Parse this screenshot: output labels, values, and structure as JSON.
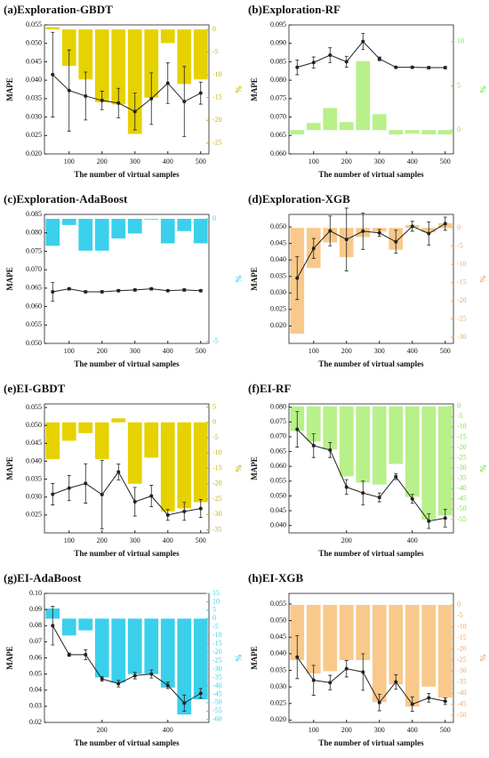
{
  "chart_data": [
    {
      "type": "combo",
      "title": "(a)Exploration-GBDT",
      "xlabel": "The number of virtual samples",
      "ylabel": "MAPE",
      "y2label": "%",
      "x": [
        50,
        100,
        150,
        200,
        250,
        300,
        350,
        400,
        450,
        500
      ],
      "xlim": [
        25,
        525
      ],
      "xticks": [
        100,
        200,
        300,
        400,
        500
      ],
      "ylim": [
        0.02,
        0.055
      ],
      "yticks": [
        {
          "value": 0.02,
          "label": "0.020"
        },
        0.025,
        {
          "value": 0.03,
          "label": "0.030"
        },
        0.035,
        {
          "value": 0.04,
          "label": "0.040"
        },
        0.045,
        {
          "value": 0.05,
          "label": "0.050"
        },
        0.055
      ],
      "y2lim": [
        -27.4,
        1
      ],
      "y2ticks": [
        0,
        -5,
        -10,
        -15,
        -20,
        -25
      ],
      "y2color": "#c8b400",
      "series": [
        {
          "type": "bar",
          "axis": "y2",
          "color": "#e6d200",
          "values": [
            0.5,
            -8,
            -11,
            -16,
            -16.5,
            -23,
            -15,
            -3,
            -12,
            -11
          ]
        },
        {
          "type": "line",
          "color": "#222222",
          "values": [
            0.0415,
            0.0372,
            0.0357,
            0.0345,
            0.0338,
            0.0315,
            0.035,
            0.0392,
            0.0342,
            0.0365
          ],
          "errors": [
            0.0115,
            0.011,
            0.0065,
            0.0025,
            0.004,
            0.005,
            0.007,
            0.0055,
            0.0095,
            0.003
          ]
        }
      ]
    },
    {
      "type": "combo",
      "title": "(b)Exploration-RF",
      "xlabel": "The number of virtual samples",
      "ylabel": "MAPE",
      "y2label": "%",
      "x": [
        50,
        100,
        150,
        200,
        250,
        300,
        350,
        400,
        450,
        500
      ],
      "xlim": [
        25,
        525
      ],
      "xticks": [
        100,
        200,
        300,
        400,
        500
      ],
      "ylim": [
        0.06,
        0.095
      ],
      "yticks": [
        {
          "value": 0.06,
          "label": "0.060"
        },
        0.065,
        {
          "value": 0.07,
          "label": "0.070"
        },
        0.075,
        {
          "value": 0.08,
          "label": "0.080"
        },
        0.085,
        {
          "value": 0.09,
          "label": "0.090"
        },
        0.095
      ],
      "y2lim": [
        -2.7,
        11.9
      ],
      "y2ticks": [
        0,
        5,
        10
      ],
      "y2color": "#7be04a",
      "series": [
        {
          "type": "bar",
          "axis": "y2",
          "color": "#b8f08a",
          "values": [
            -0.5,
            0.8,
            2.5,
            0.9,
            7.8,
            1.8,
            -0.5,
            -0.4,
            -0.5,
            -0.5
          ]
        },
        {
          "type": "line",
          "color": "#222222",
          "values": [
            0.0835,
            0.0848,
            0.0868,
            0.085,
            0.0905,
            0.0858,
            0.0835,
            0.0835,
            0.0834,
            0.0834
          ],
          "errors": [
            0.002,
            0.0015,
            0.002,
            0.0015,
            0.0022,
            0.0005,
            0.0003,
            0.0003,
            0.0003,
            0.0003
          ]
        }
      ]
    },
    {
      "type": "combo",
      "title": "(c)Exploration-AdaBoost",
      "xlabel": "The number of virtual samples",
      "ylabel": "MAPE",
      "y2label": "%",
      "x": [
        50,
        100,
        150,
        200,
        250,
        300,
        350,
        400,
        450,
        500
      ],
      "xlim": [
        25,
        525
      ],
      "xticks": [
        100,
        200,
        300,
        400,
        500
      ],
      "ylim": [
        0.05,
        0.085
      ],
      "yticks": [
        {
          "value": 0.05,
          "label": "0.050"
        },
        0.055,
        {
          "value": 0.06,
          "label": "0.060"
        },
        0.065,
        {
          "value": 0.07,
          "label": "0.070"
        },
        0.075,
        {
          "value": 0.08,
          "label": "0.080"
        },
        0.085
      ],
      "y2lim": [
        -5.08,
        0.18
      ],
      "y2ticks": [
        0,
        -5
      ],
      "y2color": "#3ad0ec",
      "series": [
        {
          "type": "bar",
          "axis": "y2",
          "color": "#3ad0ec",
          "values": [
            -1.1,
            -0.25,
            -1.3,
            -1.3,
            -0.8,
            -0.6,
            -0.03,
            -1,
            -0.5,
            -1
          ]
        },
        {
          "type": "line",
          "color": "#222222",
          "values": [
            0.064,
            0.0648,
            0.064,
            0.064,
            0.0643,
            0.0645,
            0.0648,
            0.0643,
            0.0645,
            0.0643
          ],
          "errors": [
            0.0025,
            0.0003,
            0.0003,
            0.0003,
            0.0003,
            0.0003,
            0.0003,
            0.0003,
            0.0003,
            0.0003
          ]
        }
      ]
    },
    {
      "type": "combo",
      "title": "(d)Exploration-XGB",
      "xlabel": "The number of virtual samples",
      "ylabel": "MAPE",
      "y2label": "%",
      "x": [
        50,
        100,
        150,
        200,
        250,
        300,
        350,
        400,
        450,
        500
      ],
      "xlim": [
        25,
        525
      ],
      "xticks": [
        100,
        200,
        300,
        400,
        500
      ],
      "ylim": [
        0.0147,
        0.0538
      ],
      "yticks": [
        {
          "value": 0.02,
          "label": "0.020"
        },
        0.025,
        {
          "value": 0.03,
          "label": "0.030"
        },
        0.035,
        {
          "value": 0.04,
          "label": "0.040"
        },
        0.045,
        {
          "value": 0.05,
          "label": "0.050"
        }
      ],
      "y2lim": [
        -31.7,
        3.7
      ],
      "y2ticks": [
        0,
        -5,
        -10,
        -15,
        -20,
        -25,
        -30
      ],
      "y2color": "#f0a860",
      "series": [
        {
          "type": "bar",
          "axis": "y2",
          "color": "#f8c98a",
          "values": [
            -29,
            -11,
            -4,
            -8,
            -2.5,
            -1,
            -6,
            0.8,
            -1.2,
            1.3
          ]
        },
        {
          "type": "line",
          "color": "#222222",
          "values": [
            0.0345,
            0.0435,
            0.0488,
            0.0462,
            0.0487,
            0.0482,
            0.0455,
            0.0502,
            0.048,
            0.051
          ],
          "errors": [
            0.0065,
            0.003,
            0.0045,
            0.0095,
            0.0055,
            0.001,
            0.0035,
            0.0015,
            0.0035,
            0.002
          ]
        }
      ]
    },
    {
      "type": "combo",
      "title": "(e)EI-GBDT",
      "xlabel": "The number of virtual samples",
      "ylabel": "MAPE",
      "y2label": "%",
      "x": [
        50,
        100,
        150,
        200,
        250,
        300,
        350,
        400,
        450,
        500
      ],
      "xlim": [
        25,
        525
      ],
      "xticks": [
        100,
        200,
        300,
        400,
        500
      ],
      "ylim": [
        0.02,
        0.056
      ],
      "yticks": [
        0.025,
        {
          "value": 0.03,
          "label": "0.030"
        },
        0.035,
        {
          "value": 0.04,
          "label": "0.040"
        },
        0.045,
        {
          "value": 0.05,
          "label": "0.050"
        },
        0.055
      ],
      "y2lim": [
        -36,
        6
      ],
      "y2ticks": [
        5,
        0,
        -5,
        -10,
        -15,
        -20,
        -25,
        -30,
        -35
      ],
      "y2color": "#c8b400",
      "series": [
        {
          "type": "bar",
          "axis": "y2",
          "color": "#e6d200",
          "values": [
            -12,
            -6,
            -3.5,
            -12,
            1.3,
            -20,
            -11.5,
            -29,
            -28,
            -26
          ]
        },
        {
          "type": "line",
          "color": "#222222",
          "values": [
            0.0308,
            0.0325,
            0.0338,
            0.0307,
            0.037,
            0.0287,
            0.0303,
            0.025,
            0.026,
            0.0268
          ],
          "errors": [
            0.003,
            0.0035,
            0.0055,
            0.0095,
            0.0022,
            0.004,
            0.003,
            0.0015,
            0.0025,
            0.0025
          ]
        }
      ]
    },
    {
      "type": "combo",
      "title": "(f)EI-RF",
      "xlabel": "The number of virtual samples",
      "ylabel": "MAPE",
      "y2label": "%",
      "x": [
        50,
        100,
        150,
        200,
        250,
        300,
        350,
        400,
        450,
        500
      ],
      "xlim": [
        25,
        525
      ],
      "xticks": [
        200,
        400
      ],
      "ylim": [
        0.0375,
        0.0811
      ],
      "yticks": [
        {
          "value": 0.04,
          "label": "0.040"
        },
        0.045,
        {
          "value": 0.05,
          "label": "0.050"
        },
        0.055,
        {
          "value": 0.06,
          "label": "0.060"
        },
        0.065,
        {
          "value": 0.07,
          "label": "0.070"
        },
        0.075,
        {
          "value": 0.08,
          "label": "0.080"
        }
      ],
      "y2lim": [
        -61.5,
        1.2
      ],
      "y2ticks": [
        0,
        -5,
        -10,
        -15,
        -20,
        -25,
        -30,
        -35,
        -40,
        -45,
        -50,
        -55
      ],
      "y2color": "#7be04a",
      "series": [
        {
          "type": "bar",
          "axis": "y2",
          "color": "#b8f08a",
          "values": [
            -12,
            -17,
            -21,
            -34,
            -37,
            -38,
            -28,
            -44,
            -55,
            -53
          ]
        },
        {
          "type": "line",
          "color": "#222222",
          "values": [
            0.0725,
            0.067,
            0.0655,
            0.053,
            0.051,
            0.0495,
            0.0565,
            0.049,
            0.0415,
            0.0425
          ],
          "errors": [
            0.006,
            0.004,
            0.0025,
            0.0025,
            0.004,
            0.0015,
            0.001,
            0.0015,
            0.0025,
            0.003
          ]
        }
      ]
    },
    {
      "type": "combo",
      "title": "(g)EI-AdaBoost",
      "xlabel": "The number of virtual samples",
      "ylabel": "MAPE",
      "y2label": "%",
      "x": [
        50,
        100,
        150,
        200,
        250,
        300,
        350,
        400,
        450,
        500
      ],
      "xlim": [
        25,
        525
      ],
      "xticks": [
        200,
        400
      ],
      "ylim": [
        0.02,
        0.1
      ],
      "yticks": [
        0.02,
        0.03,
        0.04,
        0.05,
        0.06,
        0.07,
        0.08,
        0.09,
        {
          "value": 0.1,
          "label": "0.10"
        }
      ],
      "y2lim": [
        -61.7,
        15
      ],
      "y2ticks": [
        15,
        10,
        5,
        0,
        -5,
        -10,
        -15,
        -20,
        -25,
        -30,
        -35,
        -40,
        -45,
        -50,
        -55,
        -60
      ],
      "y2color": "#3ad0ec",
      "series": [
        {
          "type": "bar",
          "axis": "y2",
          "color": "#3ad0ec",
          "values": [
            6,
            -10,
            -7,
            -35,
            -38,
            -33,
            -33,
            -41,
            -57,
            -48
          ]
        },
        {
          "type": "line",
          "color": "#222222",
          "values": [
            0.08,
            0.062,
            0.062,
            0.047,
            0.044,
            0.049,
            0.05,
            0.043,
            0.032,
            0.038
          ],
          "errors": [
            0.012,
            0.001,
            0.003,
            0.0015,
            0.002,
            0.002,
            0.0025,
            0.002,
            0.005,
            0.003
          ]
        }
      ]
    },
    {
      "type": "combo",
      "title": "(h)EI-XGB",
      "xlabel": "The number of virtual samples",
      "ylabel": "MAPE",
      "y2label": "%",
      "x": [
        50,
        100,
        150,
        200,
        250,
        300,
        350,
        400,
        450,
        500
      ],
      "xlim": [
        25,
        525
      ],
      "xticks": [
        100,
        200,
        300,
        400,
        500
      ],
      "ylim": [
        0.0193,
        0.0582
      ],
      "yticks": [
        {
          "value": 0.02,
          "label": "0.020"
        },
        0.025,
        {
          "value": 0.03,
          "label": "0.030"
        },
        0.035,
        {
          "value": 0.04,
          "label": "0.040"
        },
        0.045,
        {
          "value": 0.05,
          "label": "0.050"
        },
        0.055
      ],
      "y2lim": [
        -53.2,
        5.2
      ],
      "y2ticks": [
        0,
        -5,
        -10,
        -15,
        -20,
        -25,
        -30,
        -35,
        -40,
        -45,
        -50
      ],
      "y2color": "#f0a860",
      "series": [
        {
          "type": "bar",
          "axis": "y2",
          "color": "#f8c98a",
          "values": [
            -25,
            -31,
            -30,
            -25,
            -25,
            -44,
            -36,
            -46,
            -37,
            -42
          ]
        },
        {
          "type": "line",
          "color": "#222222",
          "values": [
            0.039,
            0.032,
            0.0313,
            0.0355,
            0.0345,
            0.0253,
            0.0315,
            0.0248,
            0.0267,
            0.0257
          ],
          "errors": [
            0.0065,
            0.0045,
            0.0022,
            0.0025,
            0.0055,
            0.0025,
            0.0022,
            0.0022,
            0.0013,
            0.001
          ]
        }
      ]
    }
  ]
}
